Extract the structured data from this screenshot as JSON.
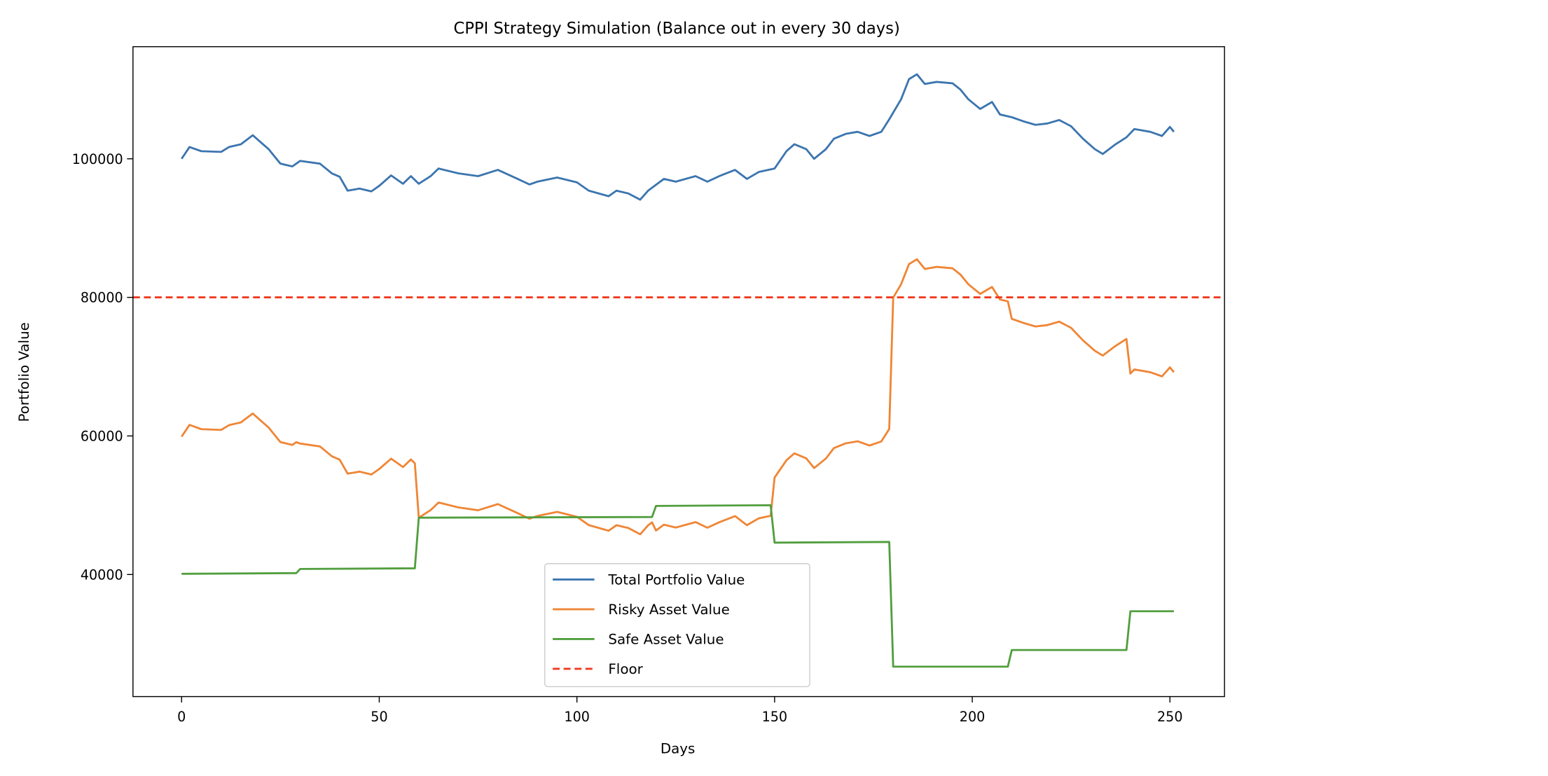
{
  "chart_data": {
    "type": "line",
    "title": "CPPI Strategy Simulation (Balance out in every 30 days)",
    "xlabel": "Days",
    "ylabel": "Portfolio Value",
    "xlim": [
      -12.5,
      264
    ],
    "ylim": [
      23000,
      116500
    ],
    "xticks": [
      0,
      50,
      100,
      150,
      200,
      250
    ],
    "yticks": [
      40000,
      60000,
      80000,
      100000
    ],
    "grid": false,
    "legend_position": "lower-center",
    "series": [
      {
        "name": "Total Portfolio Value",
        "color": "#3b75af",
        "style": "solid",
        "x": [
          0,
          2,
          5,
          10,
          12,
          15,
          18,
          20,
          22,
          25,
          28,
          30,
          35,
          38,
          40,
          42,
          45,
          48,
          50,
          53,
          56,
          58,
          60,
          63,
          65,
          70,
          75,
          80,
          85,
          88,
          90,
          95,
          100,
          103,
          108,
          110,
          113,
          116,
          118,
          122,
          125,
          130,
          133,
          136,
          140,
          143,
          146,
          150,
          153,
          155,
          158,
          160,
          163,
          165,
          168,
          171,
          174,
          177,
          179,
          182,
          184,
          186,
          188,
          191,
          195,
          197,
          199,
          202,
          205,
          207,
          210,
          213,
          216,
          219,
          222,
          225,
          228,
          231,
          233,
          236,
          239,
          241,
          245,
          248,
          250,
          251
        ],
        "y": [
          100000,
          101700,
          101100,
          101000,
          101700,
          102100,
          103400,
          102400,
          101400,
          99300,
          98900,
          99700,
          99300,
          97900,
          97400,
          95400,
          95700,
          95300,
          96100,
          97600,
          96400,
          97500,
          96400,
          97500,
          98600,
          97900,
          97500,
          98400,
          97100,
          96300,
          96700,
          97300,
          96600,
          95400,
          94600,
          95400,
          95000,
          94100,
          95400,
          97100,
          96700,
          97500,
          96700,
          97500,
          98400,
          97100,
          98100,
          98600,
          101100,
          102100,
          101400,
          100000,
          101400,
          102900,
          103600,
          103900,
          103300,
          103900,
          105700,
          108600,
          111500,
          112200,
          110800,
          111100,
          110900,
          110000,
          108600,
          107200,
          108200,
          106400,
          106000,
          105400,
          104900,
          105100,
          105600,
          104700,
          102900,
          101400,
          100700,
          102000,
          103100,
          104300,
          103900,
          103300,
          104600,
          103900
        ]
      },
      {
        "name": "Risky Asset Value",
        "color": "#ef8636",
        "style": "solid",
        "derived": "total minus safe"
      },
      {
        "name": "Safe Asset Value",
        "color": "#519e3e",
        "style": "solid",
        "x": [
          0,
          29,
          30,
          59,
          60,
          119,
          120,
          149,
          150,
          179,
          180,
          209,
          210,
          239,
          240,
          251
        ],
        "y": [
          40100,
          40200,
          40800,
          40900,
          48200,
          48300,
          49900,
          50000,
          44600,
          44700,
          26700,
          26700,
          29100,
          29100,
          34700,
          34700
        ]
      },
      {
        "name": "Floor",
        "color": "#f03b20",
        "style": "dashed",
        "value": 80000
      }
    ]
  }
}
